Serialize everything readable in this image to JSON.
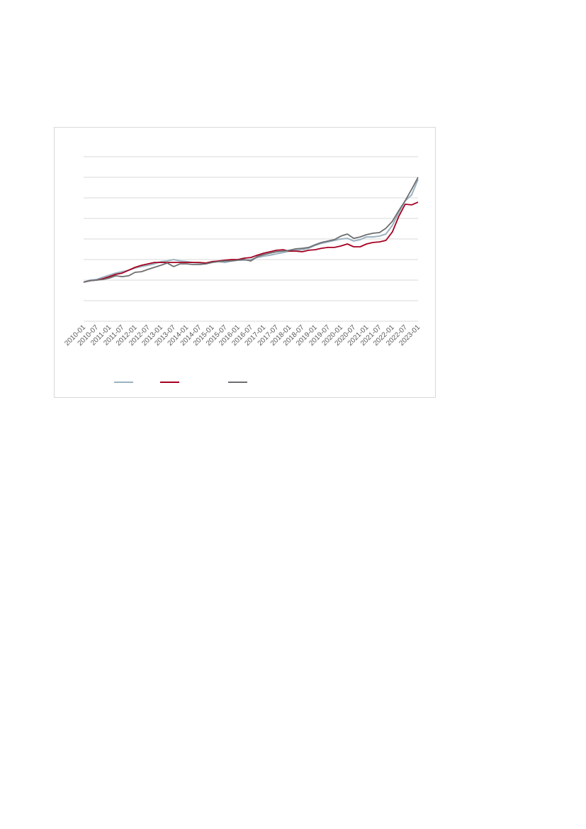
{
  "chart_data": {
    "type": "line",
    "categories": [
      "2010-01",
      null,
      "2010-07",
      null,
      "2011-01",
      null,
      "2011-07",
      null,
      "2012-01",
      null,
      "2012-07",
      null,
      "2013-01",
      null,
      "2013-07",
      null,
      "2014-01",
      null,
      "2014-07",
      null,
      "2015-01",
      null,
      "2015-07",
      null,
      "2016-01",
      null,
      "2016-07",
      null,
      "2017-01",
      null,
      "2017-07",
      null,
      "2018-01",
      null,
      "2018-07",
      null,
      "2019-01",
      null,
      "2019-07",
      null,
      "2020-01",
      null,
      "2020-07",
      null,
      "2021-01",
      null,
      "2021-07",
      null,
      "2022-01",
      null,
      "2022-07",
      null,
      "2023-01"
    ],
    "series": [
      {
        "color": "#9bb3c0",
        "values": [
          1.9,
          2.0,
          2.03,
          2.14,
          2.24,
          2.34,
          2.41,
          2.48,
          2.59,
          2.66,
          2.72,
          2.79,
          2.9,
          2.93,
          3.0,
          2.93,
          2.9,
          2.86,
          2.83,
          2.79,
          2.9,
          2.9,
          2.86,
          2.93,
          2.97,
          2.97,
          3.0,
          3.1,
          3.17,
          3.21,
          3.28,
          3.34,
          3.41,
          3.45,
          3.48,
          3.55,
          3.69,
          3.79,
          3.86,
          3.93,
          4.0,
          4.03,
          3.9,
          3.97,
          4.1,
          4.1,
          4.14,
          4.24,
          4.66,
          5.28,
          5.86,
          6.14,
          6.9
        ]
      },
      {
        "color": "#a50021",
        "values": [
          1.9,
          1.97,
          2.0,
          2.07,
          2.17,
          2.28,
          2.34,
          2.48,
          2.62,
          2.72,
          2.79,
          2.86,
          2.86,
          2.86,
          2.86,
          2.86,
          2.86,
          2.86,
          2.86,
          2.83,
          2.9,
          2.93,
          2.97,
          3.0,
          3.0,
          3.07,
          3.1,
          3.21,
          3.31,
          3.38,
          3.45,
          3.48,
          3.41,
          3.41,
          3.38,
          3.45,
          3.48,
          3.55,
          3.59,
          3.59,
          3.66,
          3.76,
          3.62,
          3.62,
          3.76,
          3.83,
          3.86,
          3.93,
          4.34,
          5.1,
          5.69,
          5.66,
          5.79
        ]
      },
      {
        "color": "#6d6e71",
        "values": [
          1.9,
          1.97,
          2.0,
          2.03,
          2.1,
          2.21,
          2.17,
          2.21,
          2.38,
          2.41,
          2.52,
          2.62,
          2.72,
          2.83,
          2.66,
          2.79,
          2.79,
          2.76,
          2.76,
          2.79,
          2.86,
          2.9,
          2.93,
          2.93,
          2.97,
          3.0,
          2.93,
          3.14,
          3.24,
          3.31,
          3.38,
          3.41,
          3.45,
          3.52,
          3.55,
          3.59,
          3.72,
          3.83,
          3.9,
          3.97,
          4.14,
          4.24,
          4.03,
          4.1,
          4.21,
          4.28,
          4.31,
          4.52,
          4.86,
          5.38,
          5.86,
          6.41,
          7.0
        ]
      }
    ],
    "ylim": [
      0,
      8
    ],
    "y_gridlines": [
      0,
      1,
      2,
      3,
      4,
      5,
      6,
      7,
      8
    ],
    "grid": true
  }
}
